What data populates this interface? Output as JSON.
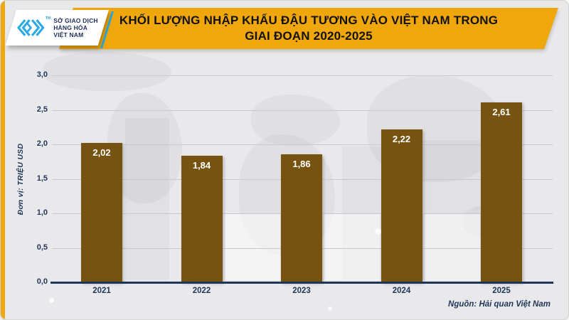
{
  "header": {
    "logo": {
      "org_lines": [
        "SỞ GIAO DỊCH",
        "HÀNG HÓA",
        "VIỆT NAM"
      ],
      "tm": "TM"
    },
    "title_line1": "KHỐI LƯỢNG NHẬP KHẨU ĐẬU TƯƠNG VÀO VIỆT NAM TRONG",
    "title_line2": "GIAI ĐOẠN 2020-2025"
  },
  "chart_data": {
    "type": "bar",
    "title": "KHỐI LƯỢNG NHẬP KHẨU ĐẬU TƯƠNG VÀO VIỆT NAM TRONG GIAI ĐOẠN 2020-2025",
    "categories": [
      "2021",
      "2022",
      "2023",
      "2024",
      "2025"
    ],
    "values": [
      2.02,
      1.84,
      1.86,
      2.22,
      2.61
    ],
    "value_labels": [
      "2,02",
      "1,84",
      "1,86",
      "2,22",
      "2,61"
    ],
    "ylabel": "Đơn vị: TRIỆU USD",
    "xlabel": "",
    "ylim": [
      0,
      3
    ],
    "ytick_step": 0.5,
    "ytick_labels": [
      "0,0",
      "0,5",
      "1,0",
      "1,5",
      "2,0",
      "2,5",
      "3,0"
    ],
    "grid": true,
    "legend": "none",
    "bar_color": "#775311"
  },
  "footer": {
    "source": "Nguồn: Hải quan Việt Nam"
  },
  "colors": {
    "banner_gold": "#f0a70c",
    "bar_brown": "#775311",
    "navy_text": "#1f3557",
    "logo_cyan": "#29abe2",
    "background": "#e9e9eb",
    "gridline": "#c3cad5"
  }
}
